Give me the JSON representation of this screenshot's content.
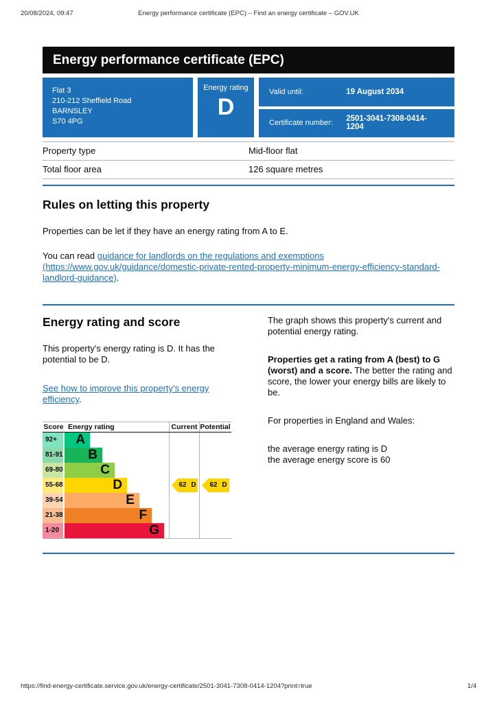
{
  "print_header": {
    "datetime": "20/08/2024, 09:47",
    "title": "Energy performance certificate (EPC) – Find an energy certificate – GOV.UK"
  },
  "banner": {
    "title": "Energy performance certificate (EPC)"
  },
  "summary": {
    "address": "Flat 3\n210-212 Sheffield Road\nBARNSLEY\nS70 4PG",
    "energy_rating_label": "Energy rating",
    "energy_rating": "D",
    "valid_until_label": "Valid until:",
    "valid_until": "19 August 2034",
    "certificate_number_label": "Certificate number:",
    "certificate_number": "2501-3041-7308-0414-1204",
    "accent_color": "#1d70b8"
  },
  "property_details": {
    "rows": [
      {
        "label": "Property type",
        "value": "Mid-floor flat"
      },
      {
        "label": "Total floor area",
        "value": "126 square metres"
      }
    ]
  },
  "rules_section": {
    "heading": "Rules on letting this property",
    "para1": "Properties can be let if they have an energy rating from A to E.",
    "para2_prefix": "You can read ",
    "link_text": "guidance for landlords on the regulations and exemptions (https://www.gov.uk/guidance/domestic-private-rented-property-minimum-energy-efficiency-standard-landlord-guidance)",
    "para2_suffix": "."
  },
  "rating_section": {
    "heading": "Energy rating and score",
    "para1": "This property's energy rating is D. It has the potential to be D.",
    "link_text": "See how to improve this property's energy efficiency",
    "link_suffix": ".",
    "right_para1": "The graph shows this property's current and potential energy rating.",
    "right_para2_bold": "Properties get a rating from A (best) to G (worst) and a score.",
    "right_para2_rest": " The better the rating and score, the lower your energy bills are likely to be.",
    "right_para3": "For properties in England and Wales:",
    "right_para4": "the average energy rating is D\nthe average energy score is 60"
  },
  "chart_data": {
    "type": "epc-rating-bands",
    "title": "",
    "columns": {
      "score": "Score",
      "rating": "Energy rating",
      "current": "Current",
      "potential": "Potential"
    },
    "bands": [
      {
        "letter": "A",
        "score_range": "92+",
        "color": "#00c781"
      },
      {
        "letter": "B",
        "score_range": "81-91",
        "color": "#19b459"
      },
      {
        "letter": "C",
        "score_range": "69-80",
        "color": "#8dce46"
      },
      {
        "letter": "D",
        "score_range": "55-68",
        "color": "#ffd500"
      },
      {
        "letter": "E",
        "score_range": "39-54",
        "color": "#fcaa65"
      },
      {
        "letter": "F",
        "score_range": "21-38",
        "color": "#ef8023"
      },
      {
        "letter": "G",
        "score_range": "1-20",
        "color": "#e9153b"
      }
    ],
    "current": {
      "score": 62,
      "band": "D",
      "arrow_color": "#ffd500"
    },
    "potential": {
      "score": 62,
      "band": "D",
      "arrow_color": "#ffd500"
    }
  },
  "print_footer": {
    "url": "https://find-energy-certificate.service.gov.uk/energy-certificate/2501-3041-7308-0414-1204?print=true",
    "page": "1/4"
  }
}
